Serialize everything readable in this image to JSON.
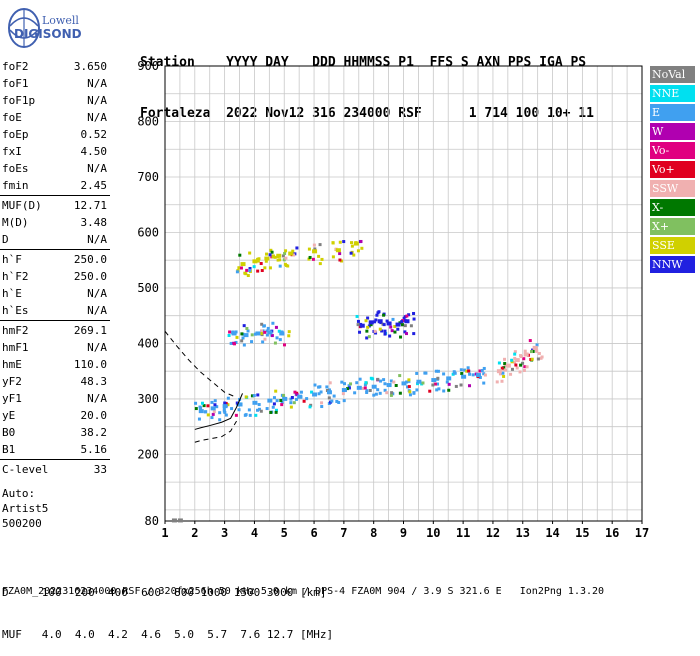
{
  "logo": {
    "top": "Lowell",
    "bottom": "DIGISONDE"
  },
  "header": {
    "line1": "Station    YYYY DAY   DDD HHMMSS P1  FFS S AXN PPS IGA PS",
    "line2": "Fortaleza  2022 Nov12 316 234000 RSF      1 714 100 10+ 11"
  },
  "params": [
    {
      "label": "foF2",
      "value": "3.650"
    },
    {
      "label": "foF1",
      "value": "N/A"
    },
    {
      "label": "foF1p",
      "value": "N/A"
    },
    {
      "label": "foE",
      "value": "N/A"
    },
    {
      "label": "foEp",
      "value": "0.52"
    },
    {
      "label": "fxI",
      "value": "4.50"
    },
    {
      "label": "foEs",
      "value": "N/A"
    },
    {
      "label": "fmin",
      "value": "2.45"
    },
    {
      "label": "MUF(D)",
      "value": "12.71"
    },
    {
      "label": "M(D)",
      "value": "3.48"
    },
    {
      "label": "D",
      "value": "N/A"
    },
    {
      "label": "h`F",
      "value": "250.0"
    },
    {
      "label": "h`F2",
      "value": "250.0"
    },
    {
      "label": "h`E",
      "value": "N/A"
    },
    {
      "label": "h`Es",
      "value": "N/A"
    },
    {
      "label": "hmF2",
      "value": "269.1"
    },
    {
      "label": "hmF1",
      "value": "N/A"
    },
    {
      "label": "hmE",
      "value": "110.0"
    },
    {
      "label": "yF2",
      "value": "48.3"
    },
    {
      "label": "yF1",
      "value": "N/A"
    },
    {
      "label": "yE",
      "value": "20.0"
    },
    {
      "label": "B0",
      "value": "38.2"
    },
    {
      "label": "B1",
      "value": "5.16"
    },
    {
      "label": "C-level",
      "value": "33"
    }
  ],
  "autoscaling": {
    "line1": "Auto:",
    "line2": "Artist5",
    "line3": "500200"
  },
  "legend": [
    {
      "label": "NoVal",
      "color": "#808080"
    },
    {
      "label": "NNE",
      "color": "#00e0f0"
    },
    {
      "label": "E",
      "color": "#40a0f0"
    },
    {
      "label": "W",
      "color": "#b000b0"
    },
    {
      "label": "Vo-",
      "color": "#e00080"
    },
    {
      "label": "Vo+",
      "color": "#e00020"
    },
    {
      "label": "SSW",
      "color": "#f0b0b0"
    },
    {
      "label": "X-",
      "color": "#007800"
    },
    {
      "label": "X+",
      "color": "#80c060"
    },
    {
      "label": "SSE",
      "color": "#d0d000"
    },
    {
      "label": "NNW",
      "color": "#2020e0"
    }
  ],
  "scale_table": {
    "line1": "D     100  200  400  600  800 1000 1500 3000 [km]",
    "line2": "MUF   4.0  4.0  4.2  4.6  5.0  5.7  7.6 12.7 [MHz]"
  },
  "footer": "FZA0M_2022316234000.RSF / 320fx256h 50 kHz 5.0 km / DPS-4 FZA0M 904 / 3.9 S 321.6 E   Ion2Png 1.3.20",
  "chart_data": {
    "type": "scatter",
    "title": "",
    "xlabel": "",
    "ylabel": "",
    "xlim": [
      1,
      17
    ],
    "ylim": [
      80,
      900
    ],
    "x_ticks": [
      1,
      2,
      3,
      4,
      5,
      6,
      7,
      8,
      9,
      10,
      11,
      12,
      13,
      14,
      15,
      16,
      17
    ],
    "y_ticks": [
      80,
      200,
      300,
      400,
      500,
      600,
      700,
      800,
      900
    ],
    "grid": true,
    "legend_position": "right",
    "traces": [
      {
        "name": "E",
        "color": "#40a0f0",
        "x": [
          2.2,
          2.6,
          3.0,
          3.5,
          4.0,
          4.5,
          5.0,
          5.5,
          6.0,
          6.5,
          7.0,
          7.5,
          8.0,
          8.5,
          9.0,
          9.5,
          10.0,
          10.5,
          11.0,
          11.5
        ],
        "y": [
          278,
          283,
          287,
          290,
          293,
          297,
          300,
          304,
          308,
          312,
          316,
          320,
          322,
          325,
          328,
          331,
          334,
          337,
          340,
          343
        ]
      },
      {
        "name": "E",
        "color": "#40a0f0",
        "x": [
          3.3,
          3.7,
          4.1,
          4.5,
          4.9
        ],
        "y": [
          418,
          415,
          418,
          420,
          418
        ]
      },
      {
        "name": "NNW",
        "color": "#2020e0",
        "x": [
          7.6,
          7.9,
          8.2,
          8.5,
          8.8,
          9.1
        ],
        "y": [
          432,
          438,
          440,
          436,
          434,
          440
        ]
      },
      {
        "name": "SSE",
        "color": "#d0d000",
        "x": [
          3.6,
          4.0,
          4.4,
          4.8,
          5.2,
          6.0,
          6.8,
          7.4
        ],
        "y": [
          543,
          548,
          553,
          558,
          562,
          566,
          568,
          580
        ]
      },
      {
        "name": "SSW",
        "color": "#f0b0b0",
        "x": [
          12.2,
          12.5,
          12.8,
          13.1,
          13.4
        ],
        "y": [
          350,
          360,
          370,
          380,
          392
        ]
      },
      {
        "name": "NoVal",
        "color": "#808080",
        "x": [
          1.3,
          1.5
        ],
        "y": [
          81,
          81
        ]
      },
      {
        "name": "SSW",
        "color": "#f0b0b0",
        "x": [
          2.0,
          2.2,
          2.5,
          2.9,
          3.2,
          3.4
        ],
        "y": [
          222,
          225,
          228,
          232,
          242,
          260
        ]
      },
      {
        "name": "SSW",
        "color": "#f0b0b0",
        "x": [
          1.0,
          1.4,
          1.8,
          2.2,
          2.6,
          3.0,
          3.3
        ],
        "y": [
          422,
          395,
          370,
          348,
          330,
          312,
          305
        ]
      }
    ],
    "virtual_height_trace": {
      "x": [
        2.0,
        2.2,
        2.5,
        2.9,
        3.2,
        3.4,
        3.6
      ],
      "y": [
        245,
        248,
        252,
        258,
        265,
        285,
        310
      ]
    }
  }
}
